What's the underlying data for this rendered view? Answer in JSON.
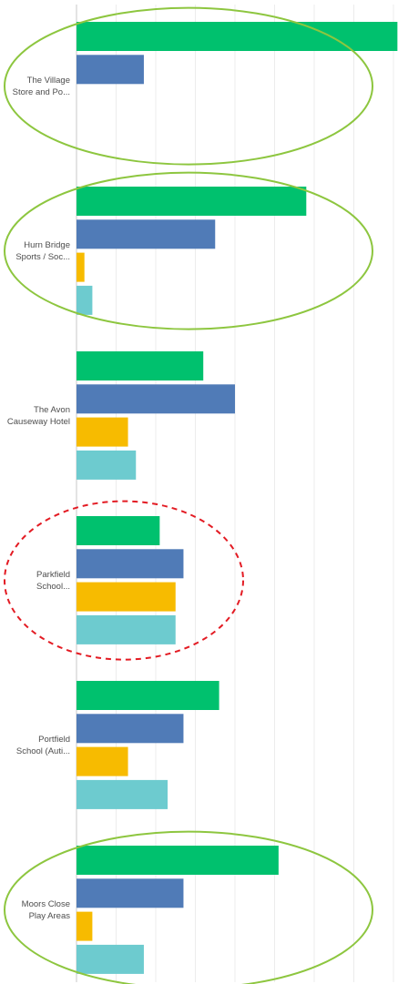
{
  "chart_data": {
    "type": "bar",
    "orientation": "horizontal",
    "categories": [
      [
        "The Village",
        "Store and Po..."
      ],
      [
        "Hurn Bridge",
        "Sports / Soc..."
      ],
      [
        "The Avon",
        "Causeway Hotel"
      ],
      [
        "Parkfield",
        "School..."
      ],
      [
        "Portfield",
        "School (Auti..."
      ],
      [
        "Moors Close",
        "Play Areas"
      ]
    ],
    "series": [
      {
        "color": "#00c16e",
        "values": [
          40.5,
          29,
          16,
          10.5,
          18,
          25.5
        ]
      },
      {
        "color": "#507bb7",
        "values": [
          8.5,
          17.5,
          20,
          13.5,
          13.5,
          13.5
        ]
      },
      {
        "color": "#f7bb00",
        "values": [
          0,
          1,
          6.5,
          12.5,
          6.5,
          2
        ]
      },
      {
        "color": "#6dcbcf",
        "values": [
          0,
          2,
          7.5,
          12.5,
          11.5,
          8.5
        ]
      }
    ],
    "xlim": [
      0,
      40
    ],
    "grid": true,
    "legend": "none",
    "annotations": [
      {
        "category_index": 0,
        "style": "solid",
        "color": "#8dc63f"
      },
      {
        "category_index": 1,
        "style": "solid",
        "color": "#8dc63f"
      },
      {
        "category_index": 3,
        "style": "dashed",
        "color": "#e31b23"
      },
      {
        "category_index": 5,
        "style": "solid",
        "color": "#8dc63f"
      }
    ]
  }
}
